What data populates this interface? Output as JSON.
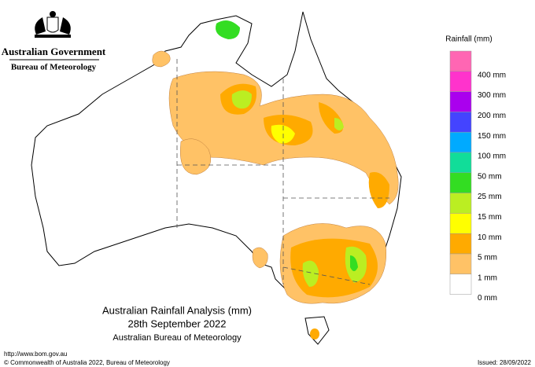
{
  "header": {
    "government": "Australian Government",
    "agency": "Bureau of Meteorology"
  },
  "legend": {
    "title": "Rainfall (mm)",
    "items": [
      {
        "color": "#ff66b3"
      },
      {
        "color": "#ff33cc",
        "label": "400 mm"
      },
      {
        "color": "#aa00ee",
        "label": "300 mm"
      },
      {
        "color": "#4444ff",
        "label": "200 mm"
      },
      {
        "color": "#00aaff",
        "label": "150 mm"
      },
      {
        "color": "#11dd99",
        "label": "100 mm"
      },
      {
        "color": "#33dd22",
        "label": "50 mm"
      },
      {
        "color": "#bbee22",
        "label": "25 mm"
      },
      {
        "color": "#ffff00",
        "label": "15 mm"
      },
      {
        "color": "#ffaa00",
        "label": "10 mm"
      },
      {
        "color": "#ffc266",
        "label": "5 mm"
      },
      {
        "color": "#ffffff",
        "label": "1 mm"
      }
    ],
    "bottom_label": "0 mm"
  },
  "title": {
    "line1": "Australian Rainfall Analysis (mm)",
    "line2": "28th September 2022",
    "line3": "Australian Bureau of Meteorology"
  },
  "footer": {
    "url": "http://www.bom.gov.au",
    "copyright": "© Commonwealth of Australia 2022, Bureau of Meteorology",
    "issued": "Issued: 28/09/2022"
  }
}
